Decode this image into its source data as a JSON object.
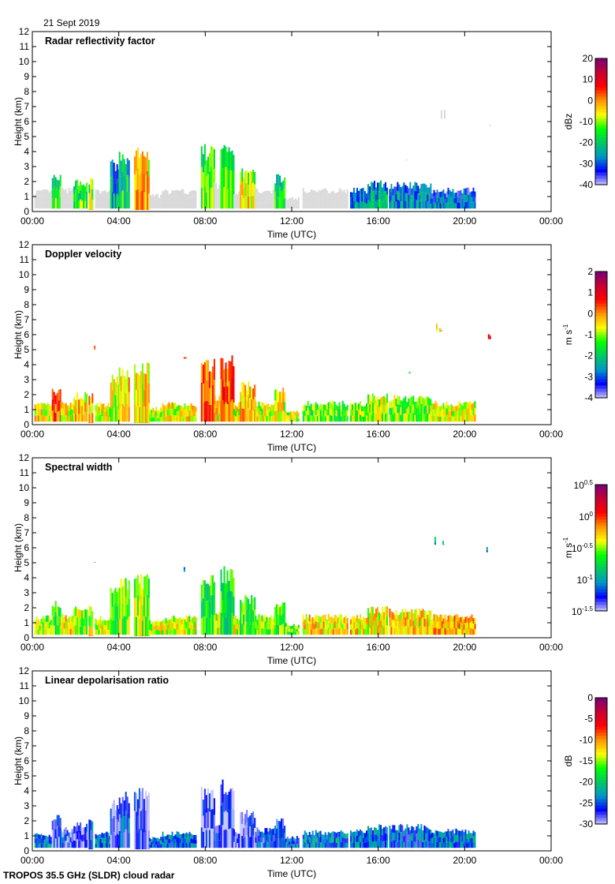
{
  "header": {
    "date": "21 Sept 2019"
  },
  "footer": {
    "text": "TROPOS 35.5 GHz (SLDR) cloud radar"
  },
  "colormap": [
    "#c8c8ff",
    "#0000ff",
    "#0096c8",
    "#00c864",
    "#00ff00",
    "#ffff00",
    "#ff9600",
    "#ff0000",
    "#c80032",
    "#780078"
  ],
  "below_threshold_color": "#d9d9d9",
  "chart_data": [
    {
      "type": "heatmap",
      "title": "Radar reflectivity factor",
      "xlabel": "Time (UTC)",
      "ylabel": "Height (km)",
      "xlim": [
        0,
        24
      ],
      "ylim": [
        0,
        12
      ],
      "xticks": [
        "00:00",
        "04:00",
        "08:00",
        "12:00",
        "16:00",
        "20:00",
        "00:00"
      ],
      "yticks": [
        "0",
        "1",
        "2",
        "3",
        "4",
        "5",
        "6",
        "7",
        "8",
        "9",
        "10",
        "11",
        "12"
      ],
      "colorbar": {
        "unit": "dBz",
        "range": [
          -40,
          20
        ],
        "ticks": [
          "20",
          "10",
          "0",
          "-10",
          "-20",
          "-30",
          "-40"
        ],
        "threshold": -34
      },
      "cells": [
        [
          0.1,
          0.9,
          0.2,
          1.5,
          -38
        ],
        [
          0.9,
          1.3,
          0.2,
          2.5,
          -20
        ],
        [
          1.3,
          1.9,
          0.2,
          1.6,
          -38
        ],
        [
          1.9,
          2.5,
          0.2,
          2.2,
          -20
        ],
        [
          2.6,
          2.8,
          0.1,
          2.3,
          -15
        ],
        [
          2.9,
          3.6,
          0.2,
          1.5,
          -38
        ],
        [
          2.85,
          2.95,
          5.0,
          5.3,
          -38
        ],
        [
          3.6,
          4.0,
          0.2,
          3.5,
          -30
        ],
        [
          4.0,
          4.5,
          0.2,
          4.0,
          -24
        ],
        [
          4.7,
          5.4,
          0.1,
          4.3,
          -8
        ],
        [
          5.4,
          6.0,
          0.2,
          1.2,
          -38
        ],
        [
          6.0,
          7.6,
          0.2,
          1.5,
          -38
        ],
        [
          7.0,
          7.2,
          4.4,
          5.0,
          -38
        ],
        [
          7.8,
          8.4,
          0.2,
          4.5,
          -18
        ],
        [
          8.4,
          8.7,
          0.2,
          2.0,
          -38
        ],
        [
          8.7,
          9.3,
          0.2,
          4.8,
          -18
        ],
        [
          9.3,
          9.6,
          0.2,
          1.5,
          -38
        ],
        [
          9.6,
          10.3,
          0.2,
          2.9,
          -12
        ],
        [
          10.3,
          11.2,
          0.2,
          1.6,
          -38
        ],
        [
          11.2,
          11.7,
          0.2,
          2.5,
          -22
        ],
        [
          11.7,
          12.3,
          0.2,
          1.0,
          -38
        ],
        [
          12.5,
          14.6,
          0.2,
          1.6,
          -38
        ],
        [
          14.7,
          15.5,
          0.2,
          1.6,
          -32
        ],
        [
          15.5,
          16.4,
          0.2,
          2.1,
          -28
        ],
        [
          16.5,
          18.4,
          0.2,
          2.0,
          -32
        ],
        [
          18.4,
          20.5,
          0.2,
          1.6,
          -34
        ],
        [
          17.2,
          17.5,
          3.4,
          3.6,
          -38
        ],
        [
          18.6,
          19.1,
          6.2,
          6.8,
          -38
        ],
        [
          21.0,
          21.2,
          5.7,
          6.2,
          -38
        ]
      ]
    },
    {
      "type": "heatmap",
      "title": "Doppler velocity",
      "xlabel": "Time (UTC)",
      "ylabel": "Height (km)",
      "xlim": [
        0,
        24
      ],
      "ylim": [
        0,
        12
      ],
      "xticks": [
        "00:00",
        "04:00",
        "08:00",
        "12:00",
        "16:00",
        "20:00",
        "00:00"
      ],
      "yticks": [
        "0",
        "1",
        "2",
        "3",
        "4",
        "5",
        "6",
        "7",
        "8",
        "9",
        "10",
        "11",
        "12"
      ],
      "colorbar": {
        "unit": "m s",
        "unit_exp": "-1",
        "range": [
          -4,
          2
        ],
        "ticks": [
          "2",
          "1",
          "0",
          "-1",
          "-2",
          "-3",
          "-4"
        ]
      },
      "cells": [
        [
          0.1,
          0.9,
          0.2,
          1.5,
          -0.5
        ],
        [
          0.9,
          1.3,
          0.2,
          2.5,
          0.3
        ],
        [
          1.3,
          1.9,
          0.2,
          1.6,
          -0.6
        ],
        [
          1.9,
          2.5,
          0.2,
          2.2,
          -0.4
        ],
        [
          2.6,
          2.8,
          0.1,
          2.3,
          -0.2
        ],
        [
          2.9,
          3.6,
          0.2,
          1.5,
          -0.7
        ],
        [
          2.85,
          2.95,
          5.0,
          5.3,
          -0.3
        ],
        [
          3.6,
          4.0,
          0.2,
          3.5,
          -0.8
        ],
        [
          4.0,
          4.5,
          0.2,
          4.0,
          -0.3
        ],
        [
          4.7,
          5.4,
          0.1,
          4.3,
          -0.5
        ],
        [
          5.4,
          6.0,
          0.2,
          1.2,
          -0.8
        ],
        [
          6.0,
          7.6,
          0.2,
          1.5,
          -0.6
        ],
        [
          7.0,
          7.2,
          4.4,
          5.0,
          0.3
        ],
        [
          7.8,
          8.4,
          0.2,
          4.5,
          0.2
        ],
        [
          8.4,
          8.7,
          0.2,
          2.0,
          -0.5
        ],
        [
          8.7,
          9.3,
          0.2,
          4.8,
          0.3
        ],
        [
          9.3,
          9.6,
          0.2,
          1.5,
          -0.7
        ],
        [
          9.6,
          10.3,
          0.2,
          2.9,
          -0.2
        ],
        [
          10.3,
          11.2,
          0.2,
          1.6,
          -0.7
        ],
        [
          11.2,
          11.7,
          0.2,
          2.5,
          -0.6
        ],
        [
          11.7,
          12.3,
          0.2,
          1.0,
          -0.8
        ],
        [
          12.5,
          14.6,
          0.2,
          1.6,
          -1.2
        ],
        [
          14.7,
          15.5,
          0.2,
          1.6,
          -1.0
        ],
        [
          15.5,
          16.4,
          0.2,
          2.1,
          -0.9
        ],
        [
          16.5,
          18.4,
          0.2,
          2.0,
          -1.1
        ],
        [
          18.4,
          20.5,
          0.2,
          1.6,
          -0.7
        ],
        [
          17.2,
          17.5,
          3.4,
          3.6,
          -1.7
        ],
        [
          18.6,
          19.1,
          6.2,
          6.8,
          -0.6
        ],
        [
          21.0,
          21.2,
          5.7,
          6.2,
          0.8
        ]
      ]
    },
    {
      "type": "heatmap",
      "title": "Spectral width",
      "xlabel": "Time (UTC)",
      "ylabel": "Height (km)",
      "xlim": [
        0,
        24
      ],
      "ylim": [
        0,
        12
      ],
      "xticks": [
        "00:00",
        "04:00",
        "08:00",
        "12:00",
        "16:00",
        "20:00",
        "00:00"
      ],
      "yticks": [
        "0",
        "1",
        "2",
        "3",
        "4",
        "5",
        "6",
        "7",
        "8",
        "9",
        "10",
        "11",
        "12"
      ],
      "colorbar": {
        "unit": "m s",
        "unit_exp": "-1",
        "scale": "log",
        "range_exponent": [
          -1.5,
          0.5
        ],
        "tick_base": "10",
        "tick_exponents": [
          "0.5",
          "0",
          "-0.5",
          "-1",
          "-1.5"
        ]
      },
      "cells": [
        [
          0.1,
          0.9,
          0.2,
          1.5,
          -0.5
        ],
        [
          0.9,
          1.3,
          0.2,
          2.5,
          -0.6
        ],
        [
          1.3,
          1.9,
          0.2,
          1.6,
          -0.3
        ],
        [
          1.9,
          2.5,
          0.2,
          2.2,
          -0.5
        ],
        [
          2.6,
          2.8,
          0.1,
          2.3,
          -0.4
        ],
        [
          2.9,
          3.6,
          0.2,
          1.5,
          -0.4
        ],
        [
          2.85,
          2.95,
          5.0,
          5.3,
          -1.0
        ],
        [
          3.6,
          4.0,
          0.2,
          3.5,
          -0.6
        ],
        [
          4.0,
          4.5,
          0.2,
          4.0,
          -0.5
        ],
        [
          4.7,
          5.4,
          0.1,
          4.3,
          -0.5
        ],
        [
          5.4,
          6.0,
          0.2,
          1.2,
          -0.4
        ],
        [
          6.0,
          7.6,
          0.2,
          1.5,
          -0.4
        ],
        [
          7.0,
          7.2,
          4.4,
          5.0,
          -1.0
        ],
        [
          7.8,
          8.4,
          0.2,
          4.5,
          -0.7
        ],
        [
          8.4,
          8.7,
          0.2,
          2.0,
          -0.4
        ],
        [
          8.7,
          9.3,
          0.2,
          4.8,
          -0.7
        ],
        [
          9.3,
          9.6,
          0.2,
          1.5,
          -0.4
        ],
        [
          9.6,
          10.3,
          0.2,
          2.9,
          -0.6
        ],
        [
          10.3,
          11.2,
          0.2,
          1.6,
          -0.5
        ],
        [
          11.2,
          11.7,
          0.2,
          2.5,
          -0.6
        ],
        [
          11.7,
          12.3,
          0.2,
          1.0,
          -0.5
        ],
        [
          12.5,
          14.6,
          0.2,
          1.6,
          -0.3
        ],
        [
          14.7,
          15.5,
          0.2,
          1.6,
          -0.3
        ],
        [
          15.5,
          16.4,
          0.2,
          2.1,
          -0.35
        ],
        [
          16.5,
          18.4,
          0.2,
          2.0,
          -0.3
        ],
        [
          18.4,
          20.5,
          0.2,
          1.6,
          -0.25
        ],
        [
          17.2,
          17.5,
          3.4,
          3.6,
          -1.0
        ],
        [
          18.6,
          19.1,
          6.2,
          6.8,
          -1.0
        ],
        [
          21.0,
          21.2,
          5.7,
          6.2,
          -1.0
        ]
      ]
    },
    {
      "type": "heatmap",
      "title": "Linear depolarisation ratio",
      "xlabel": "Time (UTC)",
      "ylabel": "Height (km)",
      "xlim": [
        0,
        24
      ],
      "ylim": [
        0,
        12
      ],
      "xticks": [
        "00:00",
        "04:00",
        "08:00",
        "12:00",
        "16:00",
        "20:00",
        "00:00"
      ],
      "yticks": [
        "0",
        "1",
        "2",
        "3",
        "4",
        "5",
        "6",
        "7",
        "8",
        "9",
        "10",
        "11",
        "12"
      ],
      "colorbar": {
        "unit": "dB",
        "range": [
          -30,
          0
        ],
        "ticks": [
          "0",
          "-5",
          "-10",
          "-15",
          "-20",
          "-25",
          "-30"
        ]
      },
      "cells": [
        [
          0.1,
          0.9,
          0.2,
          1.2,
          -24
        ],
        [
          0.9,
          1.3,
          0.2,
          2.5,
          -28
        ],
        [
          1.3,
          1.9,
          0.2,
          1.6,
          -27
        ],
        [
          1.9,
          2.5,
          0.2,
          2.0,
          -28
        ],
        [
          2.6,
          2.8,
          0.1,
          2.3,
          -25
        ],
        [
          2.9,
          3.6,
          0.2,
          1.3,
          -24
        ],
        [
          3.6,
          4.0,
          0.2,
          3.5,
          -28
        ],
        [
          4.0,
          4.5,
          0.2,
          4.0,
          -26
        ],
        [
          4.7,
          5.4,
          0.1,
          4.3,
          -28
        ],
        [
          5.4,
          6.0,
          0.2,
          1.0,
          -24
        ],
        [
          6.0,
          7.6,
          0.2,
          1.3,
          -25
        ],
        [
          7.8,
          8.4,
          0.2,
          4.5,
          -28
        ],
        [
          8.4,
          8.7,
          0.2,
          2.0,
          -27
        ],
        [
          8.7,
          9.3,
          0.2,
          4.8,
          -28
        ],
        [
          9.3,
          9.6,
          0.2,
          1.5,
          -27
        ],
        [
          9.6,
          10.3,
          0.2,
          2.9,
          -28
        ],
        [
          10.3,
          11.2,
          0.2,
          1.6,
          -26
        ],
        [
          11.2,
          11.7,
          0.2,
          2.2,
          -26
        ],
        [
          11.7,
          12.3,
          0.2,
          1.0,
          -25
        ],
        [
          12.5,
          14.6,
          0.2,
          1.4,
          -24
        ],
        [
          14.7,
          15.5,
          0.2,
          1.5,
          -24
        ],
        [
          15.5,
          16.4,
          0.2,
          1.8,
          -25
        ],
        [
          16.5,
          18.4,
          0.2,
          1.8,
          -25
        ],
        [
          18.4,
          20.5,
          0.2,
          1.5,
          -24
        ]
      ]
    }
  ]
}
